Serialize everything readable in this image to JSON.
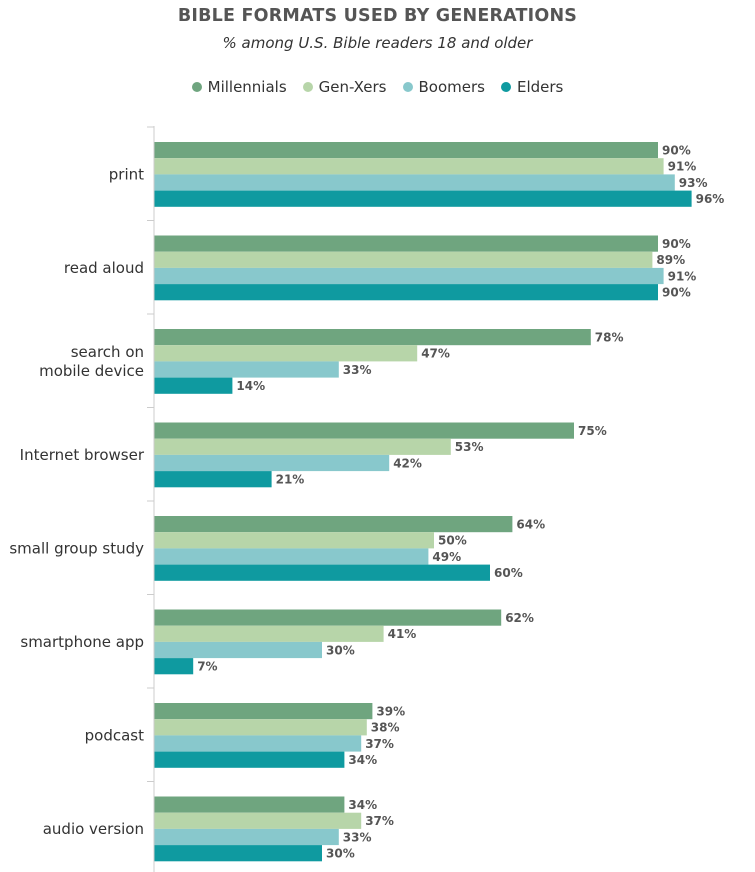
{
  "chart_data": {
    "type": "bar",
    "orientation": "horizontal",
    "title": "BIBLE FORMATS USED BY GENERATIONS",
    "subtitle": "% among U.S. Bible readers 18 and older",
    "categories": [
      [
        "print"
      ],
      [
        "read aloud"
      ],
      [
        "search on",
        "mobile device"
      ],
      [
        "Internet browser"
      ],
      [
        "small group study"
      ],
      [
        "smartphone app"
      ],
      [
        "podcast"
      ],
      [
        "audio version"
      ]
    ],
    "series": [
      {
        "name": "Millennials",
        "color": "#6fa57f",
        "values": [
          90,
          90,
          78,
          75,
          64,
          62,
          39,
          34
        ]
      },
      {
        "name": "Gen-Xers",
        "color": "#b7d5a9",
        "values": [
          91,
          89,
          47,
          53,
          50,
          41,
          38,
          37
        ]
      },
      {
        "name": "Boomers",
        "color": "#88c8cc",
        "values": [
          93,
          91,
          33,
          42,
          49,
          30,
          37,
          33
        ]
      },
      {
        "name": "Elders",
        "color": "#0f9aa0",
        "values": [
          96,
          90,
          14,
          21,
          60,
          7,
          34,
          30
        ]
      }
    ],
    "value_suffix": "%",
    "xlim": [
      0,
      100
    ],
    "legend_position": "top",
    "grid": false
  }
}
